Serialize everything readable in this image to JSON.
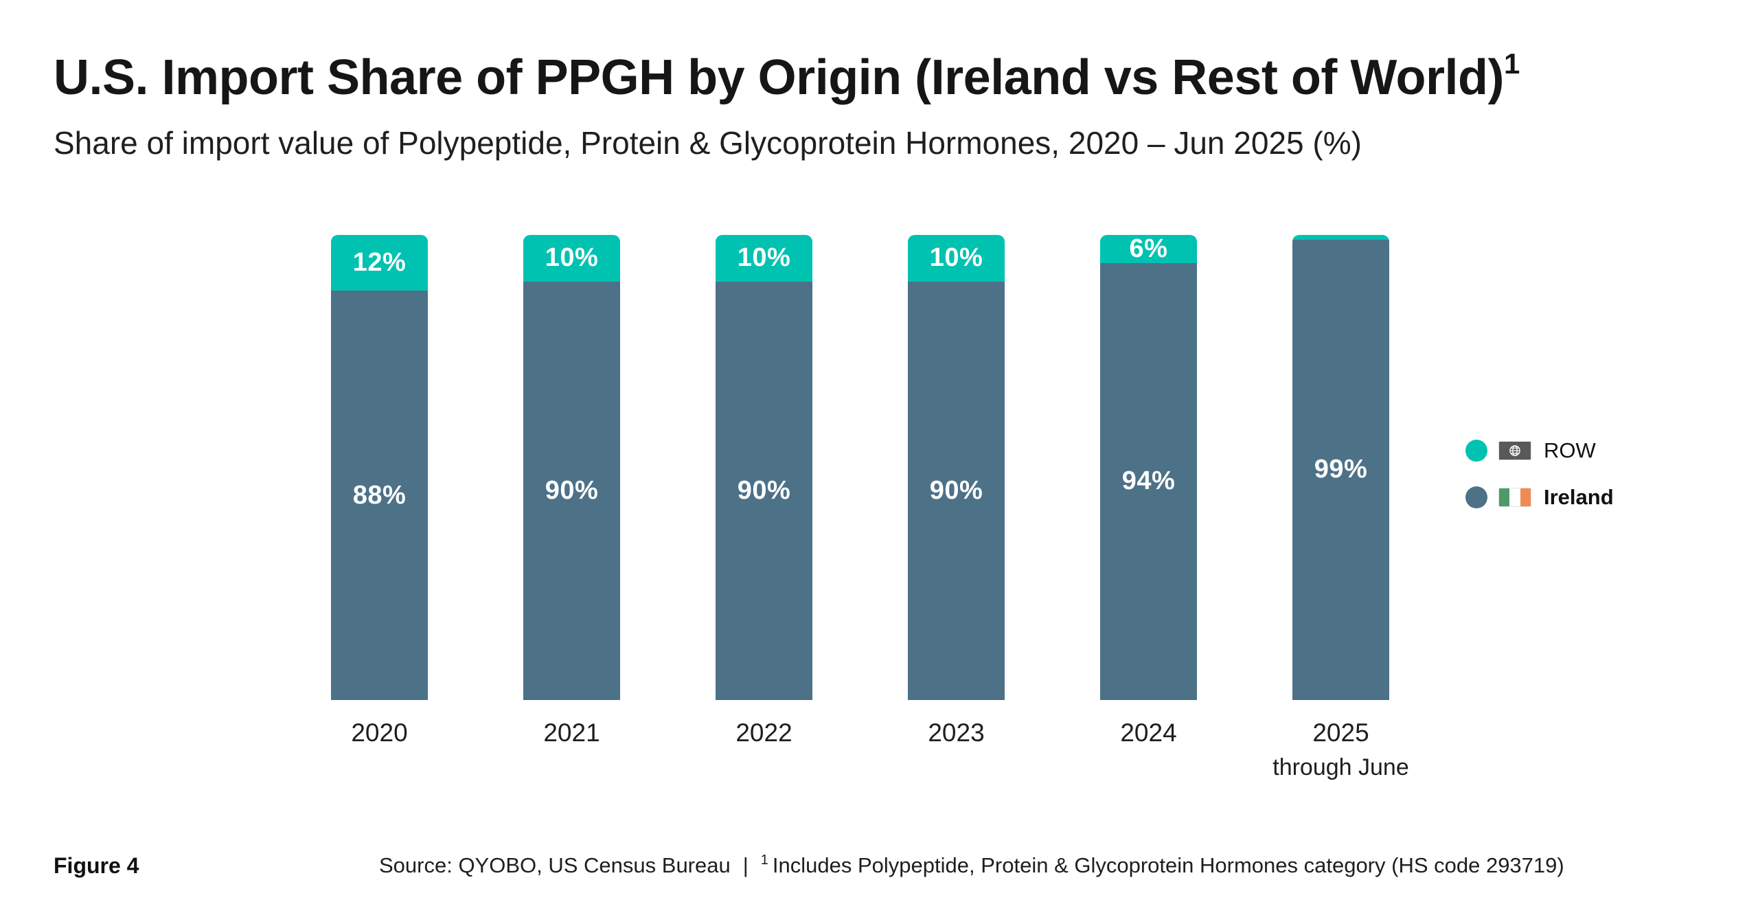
{
  "header": {
    "title": "U.S. Import Share of PPGH by Origin (Ireland vs Rest of World)",
    "title_superscript": "1",
    "subtitle": "Share of import value of Polypeptide, Protein & Glycoprotein Hormones, 2020 – Jun 2025 (%)"
  },
  "chart_data": {
    "type": "bar",
    "stacked": true,
    "unit": "%",
    "categories": [
      {
        "label": "2020",
        "sublabel": ""
      },
      {
        "label": "2021",
        "sublabel": ""
      },
      {
        "label": "2022",
        "sublabel": ""
      },
      {
        "label": "2023",
        "sublabel": ""
      },
      {
        "label": "2024",
        "sublabel": ""
      },
      {
        "label": "2025",
        "sublabel": "through June"
      }
    ],
    "stack_top_to_bottom": [
      "ROW",
      "Ireland"
    ],
    "series": [
      {
        "name": "ROW",
        "color": "#00C2B1",
        "values": [
          12,
          10,
          10,
          10,
          6,
          1
        ],
        "labels": [
          "12%",
          "10%",
          "10%",
          "10%",
          "6%",
          ""
        ]
      },
      {
        "name": "Ireland",
        "color": "#4D7187",
        "values": [
          88,
          90,
          90,
          90,
          94,
          99
        ],
        "labels": [
          "88%",
          "90%",
          "90%",
          "90%",
          "94%",
          "99%"
        ]
      }
    ],
    "ylim": [
      0,
      100
    ],
    "grid": false,
    "y_axis_shown": false,
    "legend_position": "right"
  },
  "legend": {
    "items": [
      {
        "label": "ROW",
        "dot_color": "#00C2B1",
        "flag": "globe-flag",
        "bold": false
      },
      {
        "label": "Ireland",
        "dot_color": "#4D7187",
        "flag": "ireland-flag",
        "bold": true
      }
    ],
    "ireland_flag_colors": [
      "#4E9B68",
      "#FFFFFF",
      "#F08A50"
    ],
    "globe_flag_color": "#58595B"
  },
  "footer": {
    "figure_label": "Figure 4",
    "source": "Source: QYOBO, US Census Bureau",
    "divider": "|",
    "footnote_superscript": "1",
    "footnote": "Includes Polypeptide, Protein & Glycoprotein Hormones category (HS code 293719)"
  }
}
